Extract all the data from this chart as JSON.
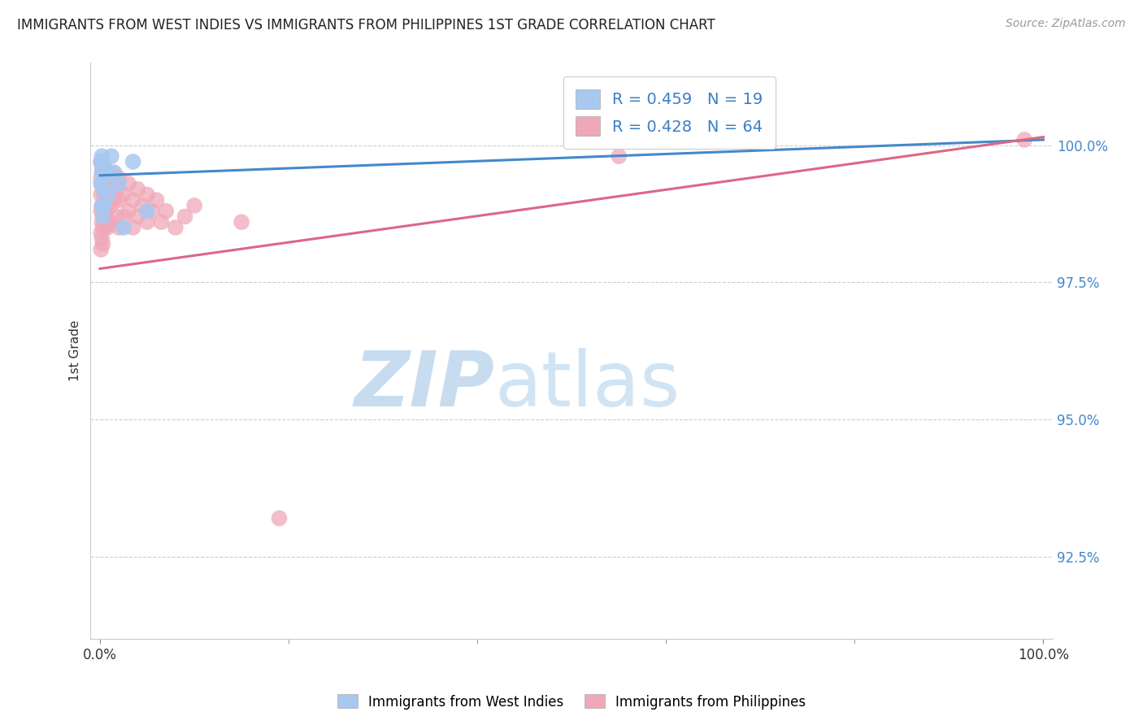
{
  "title": "IMMIGRANTS FROM WEST INDIES VS IMMIGRANTS FROM PHILIPPINES 1ST GRADE CORRELATION CHART",
  "source": "Source: ZipAtlas.com",
  "ylabel": "1st Grade",
  "ylabel_ticks": [
    100.0,
    97.5,
    95.0,
    92.5
  ],
  "ylabel_tick_labels": [
    "100.0%",
    "97.5%",
    "95.0%",
    "92.5%"
  ],
  "ylim": [
    91.0,
    101.5
  ],
  "xlim": [
    -0.01,
    1.01
  ],
  "legend_blue_R": "R = 0.459",
  "legend_blue_N": "N = 19",
  "legend_pink_R": "R = 0.428",
  "legend_pink_N": "N = 64",
  "blue_color": "#A8C8F0",
  "pink_color": "#F0A8B8",
  "blue_line_color": "#4488CC",
  "pink_line_color": "#DD6688",
  "blue_scatter": [
    [
      0.001,
      99.7
    ],
    [
      0.001,
      99.3
    ],
    [
      0.002,
      99.8
    ],
    [
      0.002,
      99.5
    ],
    [
      0.002,
      98.9
    ],
    [
      0.003,
      99.6
    ],
    [
      0.003,
      99.2
    ],
    [
      0.003,
      98.7
    ],
    [
      0.004,
      99.4
    ],
    [
      0.004,
      98.9
    ],
    [
      0.005,
      99.6
    ],
    [
      0.007,
      99.5
    ],
    [
      0.009,
      99.1
    ],
    [
      0.012,
      99.8
    ],
    [
      0.015,
      99.5
    ],
    [
      0.02,
      99.3
    ],
    [
      0.025,
      98.5
    ],
    [
      0.035,
      99.7
    ],
    [
      0.05,
      98.8
    ]
  ],
  "pink_scatter": [
    [
      0.001,
      99.7
    ],
    [
      0.001,
      99.4
    ],
    [
      0.001,
      99.1
    ],
    [
      0.001,
      98.8
    ],
    [
      0.001,
      98.4
    ],
    [
      0.001,
      98.1
    ],
    [
      0.002,
      99.6
    ],
    [
      0.002,
      99.3
    ],
    [
      0.002,
      98.9
    ],
    [
      0.002,
      98.6
    ],
    [
      0.002,
      98.3
    ],
    [
      0.003,
      99.5
    ],
    [
      0.003,
      99.2
    ],
    [
      0.003,
      98.8
    ],
    [
      0.003,
      98.5
    ],
    [
      0.003,
      98.2
    ],
    [
      0.004,
      99.4
    ],
    [
      0.004,
      99.1
    ],
    [
      0.004,
      98.7
    ],
    [
      0.005,
      99.3
    ],
    [
      0.005,
      98.9
    ],
    [
      0.005,
      98.5
    ],
    [
      0.006,
      99.2
    ],
    [
      0.006,
      98.8
    ],
    [
      0.007,
      99.1
    ],
    [
      0.007,
      98.7
    ],
    [
      0.008,
      98.9
    ],
    [
      0.008,
      98.5
    ],
    [
      0.009,
      99.0
    ],
    [
      0.009,
      98.6
    ],
    [
      0.01,
      99.4
    ],
    [
      0.01,
      99.0
    ],
    [
      0.01,
      98.6
    ],
    [
      0.012,
      99.3
    ],
    [
      0.012,
      98.9
    ],
    [
      0.015,
      99.5
    ],
    [
      0.015,
      99.0
    ],
    [
      0.018,
      99.2
    ],
    [
      0.018,
      98.7
    ],
    [
      0.02,
      99.4
    ],
    [
      0.02,
      99.0
    ],
    [
      0.02,
      98.5
    ],
    [
      0.025,
      99.1
    ],
    [
      0.025,
      98.7
    ],
    [
      0.03,
      99.3
    ],
    [
      0.03,
      98.8
    ],
    [
      0.035,
      99.0
    ],
    [
      0.035,
      98.5
    ],
    [
      0.04,
      99.2
    ],
    [
      0.04,
      98.7
    ],
    [
      0.045,
      98.9
    ],
    [
      0.05,
      99.1
    ],
    [
      0.05,
      98.6
    ],
    [
      0.055,
      98.8
    ],
    [
      0.06,
      99.0
    ],
    [
      0.065,
      98.6
    ],
    [
      0.07,
      98.8
    ],
    [
      0.08,
      98.5
    ],
    [
      0.09,
      98.7
    ],
    [
      0.1,
      98.9
    ],
    [
      0.15,
      98.6
    ],
    [
      0.19,
      93.2
    ],
    [
      0.55,
      99.8
    ],
    [
      0.98,
      100.1
    ]
  ],
  "blue_line": {
    "x0": 0.0,
    "y0": 99.45,
    "x1": 1.0,
    "y1": 100.1
  },
  "pink_line": {
    "x0": 0.0,
    "y0": 97.75,
    "x1": 1.0,
    "y1": 100.15
  },
  "grid_color": "#CCCCCC",
  "background_color": "#FFFFFF"
}
